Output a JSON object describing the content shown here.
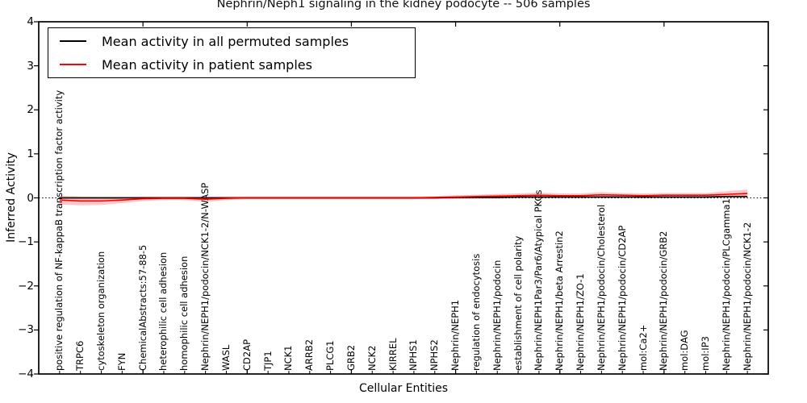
{
  "chart_data": {
    "type": "line",
    "title": "Nephrin/Neph1 signaling in the kidney podocyte -- 506 samples",
    "xlabel": "Cellular Entities",
    "ylabel": "Inferred Activity",
    "xlim": [
      0,
      35
    ],
    "ylim": [
      -4,
      4
    ],
    "yticks": [
      4,
      3,
      2,
      1,
      0,
      -1,
      -2,
      -3,
      -4
    ],
    "xticks_major": [
      5,
      10,
      15,
      20,
      25,
      30
    ],
    "grid": false,
    "zero_reference_line": 0,
    "legend_position": "upper-left",
    "categories": [
      "positive regulation of NF-kappaB transcription factor activity",
      "TRPC6",
      "cytoskeleton organization",
      "FYN",
      "ChemicalAbstracts:57-88-5",
      "heterophilic cell adhesion",
      "homophilic cell adhesion",
      "Nephrin/NEPH1/podocin/NCK1-2/N-WASP",
      "WASL",
      "CD2AP",
      "TJP1",
      "NCK1",
      "ARRB2",
      "PLCG1",
      "GRB2",
      "NCK2",
      "KIRREL",
      "NPHS1",
      "NPHS2",
      "Nephrin/NEPH1",
      "regulation of endocytosis",
      "Nephrin/NEPH1/podocin",
      "establishment of cell polarity",
      "Nephrin/NEPH1Par3/Par6/Atypical PKCs",
      "Nephrin/NEPH1/beta Arrestin2",
      "Nephrin/NEPH1/ZO-1",
      "Nephrin/NEPH1/podocin/Cholesterol",
      "Nephrin/NEPH1/podocin/CD2AP",
      "mol:Ca2+",
      "Nephrin/NEPH1/podocin/GRB2",
      "mol:DAG",
      "mol:IP3",
      "Nephrin/NEPH1/podocin/PLCgamma1",
      "Nephrin/NEPH1/podocin/NCK1-2"
    ],
    "series": [
      {
        "name": "Mean activity in all permuted samples",
        "color": "#000000",
        "band_opacity": 0.15,
        "values": [
          0,
          0,
          0,
          0,
          0,
          0,
          0,
          0,
          0,
          0,
          0,
          0,
          0,
          0,
          0,
          0,
          0,
          0,
          0,
          0.01,
          0.01,
          0.01,
          0.02,
          0.02,
          0.02,
          0.02,
          0.02,
          0.02,
          0.02,
          0.02,
          0.02,
          0.02,
          0.03,
          0.03
        ],
        "band": 0.03
      },
      {
        "name": "Mean activity in patient samples",
        "color": "#ff0000",
        "band_opacity": 0.22,
        "values": [
          -0.05,
          -0.07,
          -0.07,
          -0.05,
          -0.02,
          -0.01,
          -0.01,
          -0.03,
          -0.01,
          0,
          0,
          0,
          0,
          0,
          0,
          0,
          0,
          0,
          0.01,
          0.02,
          0.03,
          0.04,
          0.05,
          0.06,
          0.05,
          0.05,
          0.07,
          0.06,
          0.05,
          0.06,
          0.06,
          0.06,
          0.08,
          0.1
        ],
        "band": [
          0.1,
          0.1,
          0.09,
          0.07,
          0.05,
          0.04,
          0.04,
          0.06,
          0.04,
          0.03,
          0.03,
          0.03,
          0.03,
          0.03,
          0.03,
          0.03,
          0.03,
          0.03,
          0.03,
          0.04,
          0.04,
          0.05,
          0.05,
          0.06,
          0.05,
          0.05,
          0.06,
          0.05,
          0.05,
          0.05,
          0.05,
          0.05,
          0.07,
          0.09
        ]
      }
    ]
  }
}
